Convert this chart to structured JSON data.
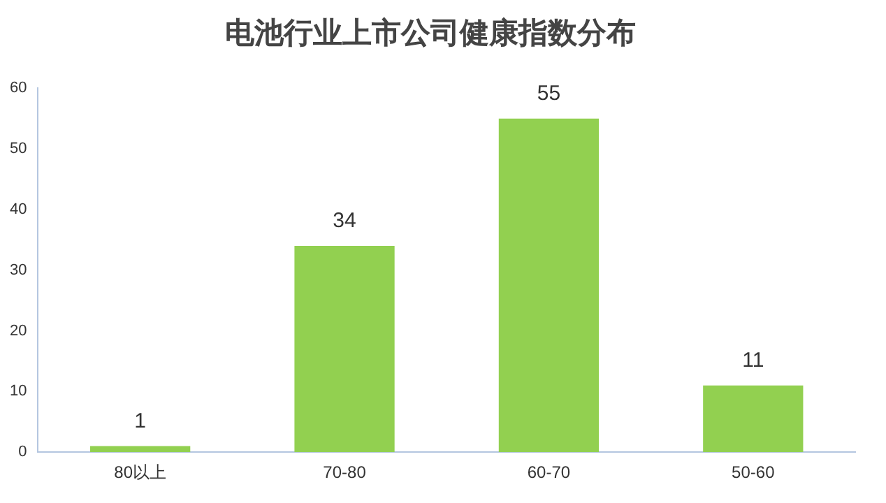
{
  "chart_data": {
    "type": "bar",
    "title": "电池行业上市公司健康指数分布",
    "categories": [
      "80以上",
      "70-80",
      "60-70",
      "50-60"
    ],
    "values": [
      1,
      34,
      55,
      11
    ],
    "color": "#92d050",
    "ylim": [
      0,
      60
    ],
    "yticks": [
      0,
      10,
      20,
      30,
      40,
      50,
      60
    ],
    "grid": false,
    "data_labels": true
  }
}
